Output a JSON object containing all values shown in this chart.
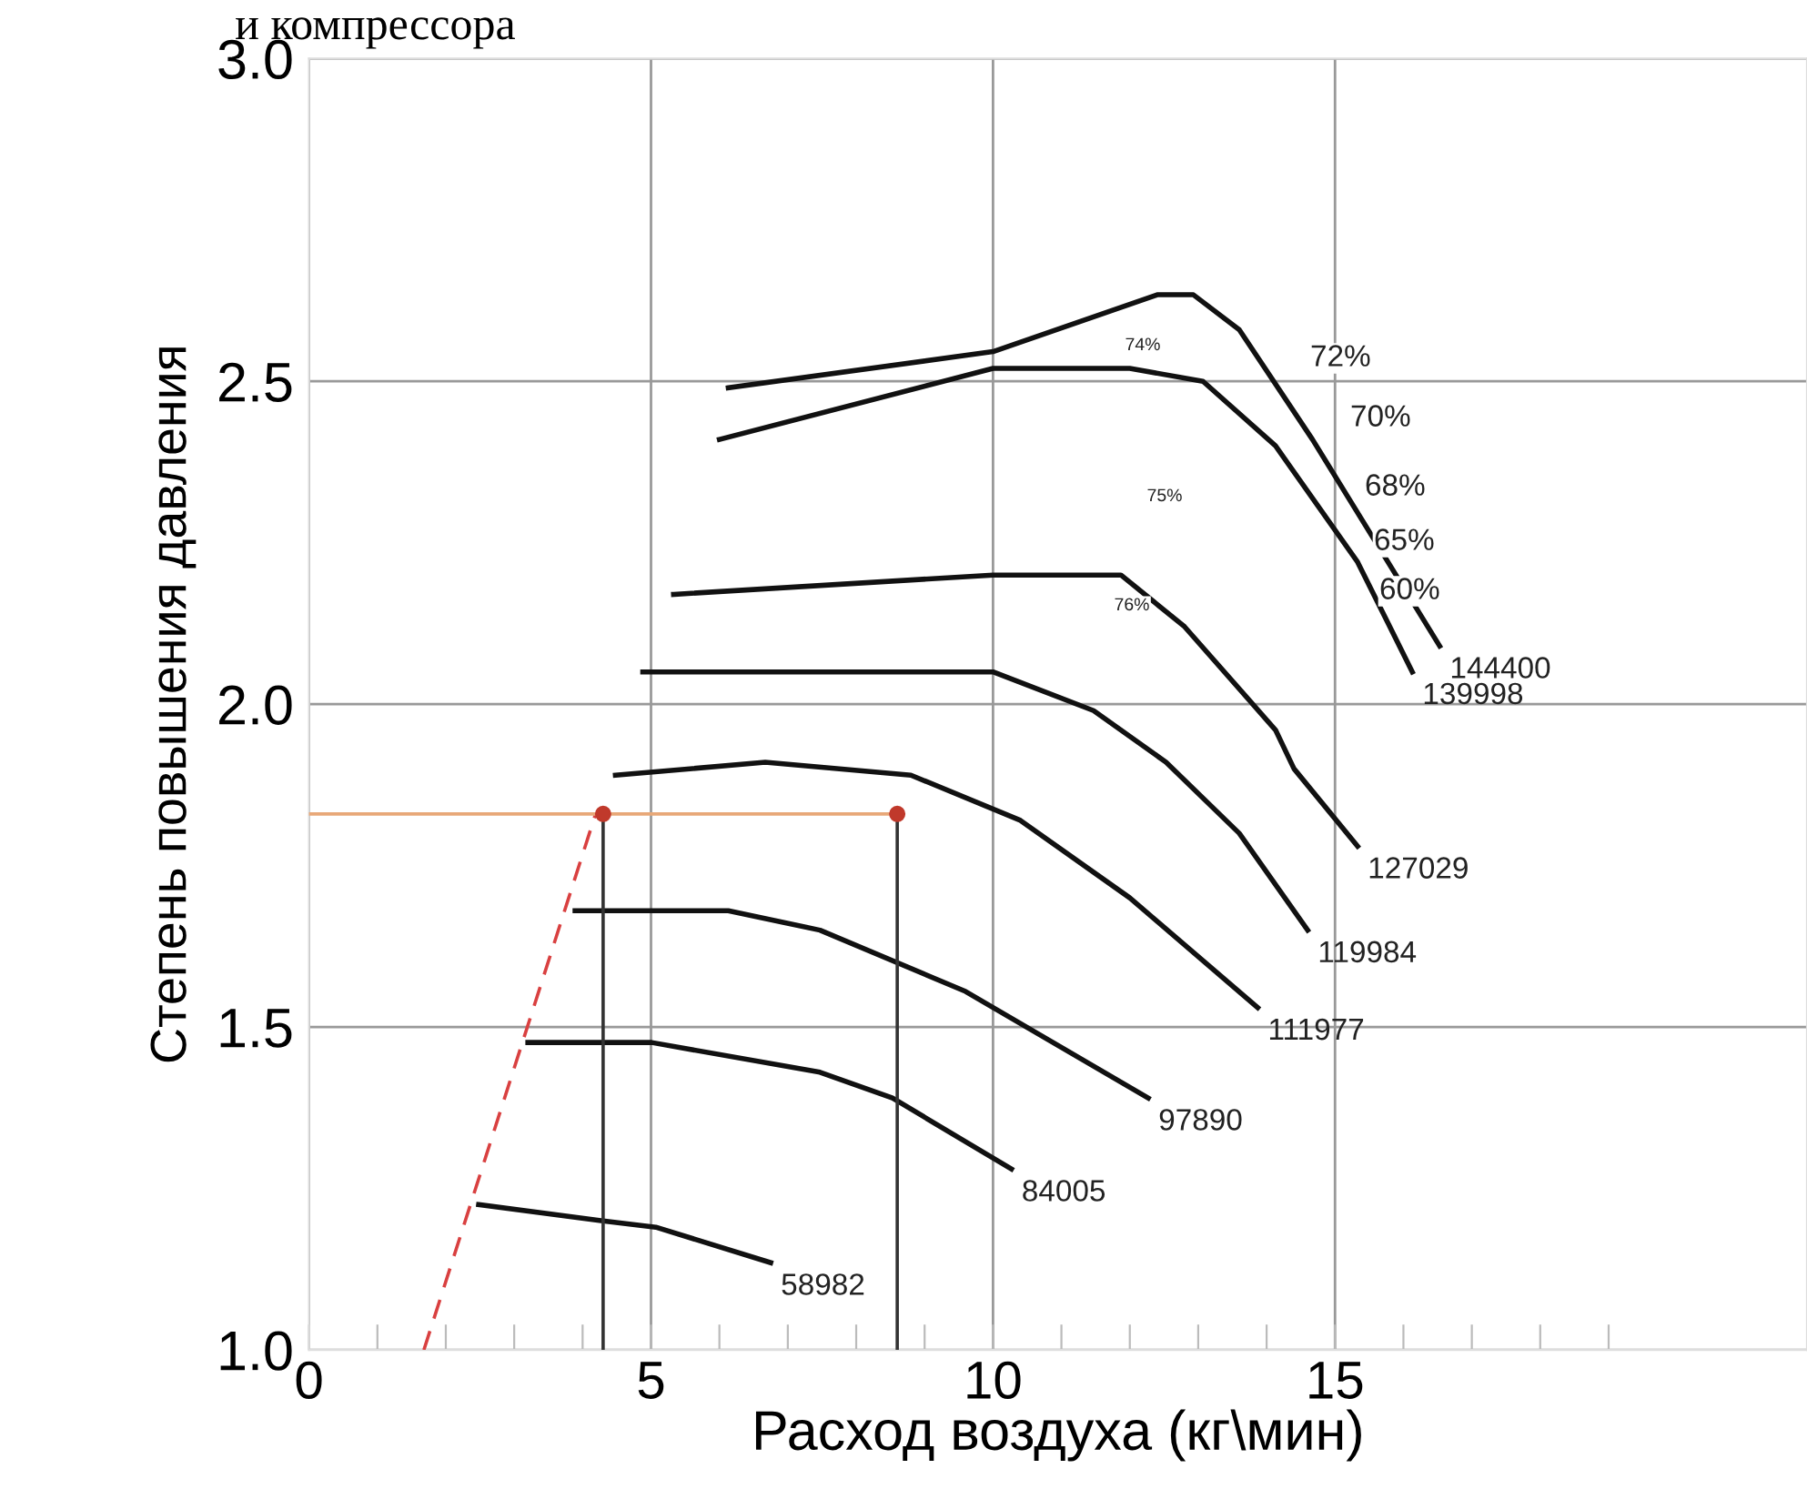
{
  "chart_data": {
    "type": "line",
    "title": "и компрессора",
    "xlabel": "Расход воздуха (кг\\мин)",
    "ylabel": "Степень повышения давления",
    "xlim": [
      0,
      21.9
    ],
    "ylim": [
      1.0,
      3.0
    ],
    "xticks": [
      0,
      {
        "value": 1,
        "label": null
      },
      {
        "value": 2,
        "label": null
      },
      {
        "value": 3,
        "label": null
      },
      {
        "value": 4,
        "label": null
      },
      5,
      {
        "value": 6,
        "label": null
      },
      {
        "value": 7,
        "label": null
      },
      {
        "value": 8,
        "label": null
      },
      {
        "value": 9,
        "label": null
      },
      10,
      {
        "value": 11,
        "label": null
      },
      {
        "value": 12,
        "label": null
      },
      {
        "value": 13,
        "label": null
      },
      {
        "value": 14,
        "label": null
      },
      15,
      {
        "value": 16,
        "label": null
      },
      {
        "value": 17,
        "label": null
      },
      {
        "value": 18,
        "label": null
      },
      {
        "value": 19,
        "label": null
      }
    ],
    "yticks": [
      {
        "value": 1,
        "label": "1.0"
      },
      1.5,
      {
        "value": 2,
        "label": "2.0"
      },
      2.5,
      {
        "value": 3,
        "label": "3.0"
      }
    ],
    "grid": true,
    "series": [
      {
        "name": "144400",
        "color": "#111111",
        "x": [
          6.13,
          10.0,
          12.4,
          12.93,
          13.6,
          14.67,
          16.53
        ],
        "values": [
          2.49,
          2.546,
          2.634,
          2.634,
          2.58,
          2.41,
          2.09
        ]
      },
      {
        "name": "139998",
        "color": "#111111",
        "x": [
          6.0,
          10.0,
          12.0,
          13.07,
          14.13,
          15.33,
          16.13
        ],
        "values": [
          2.41,
          2.52,
          2.52,
          2.5,
          2.4,
          2.22,
          2.05
        ]
      },
      {
        "name": "127029",
        "color": "#111111",
        "x": [
          5.33,
          10.0,
          11.87,
          12.8,
          14.13,
          14.4,
          15.33
        ],
        "values": [
          2.17,
          2.2,
          2.2,
          2.12,
          1.96,
          1.9,
          1.78
        ]
      },
      {
        "name": "119984",
        "color": "#111111",
        "x": [
          4.88,
          10.0,
          11.47,
          12.53,
          13.6,
          14.6
        ],
        "values": [
          2.05,
          2.05,
          1.99,
          1.91,
          1.8,
          1.65
        ]
      },
      {
        "name": "111977",
        "color": "#111111",
        "x": [
          4.48,
          6.67,
          8.8,
          10.4,
          12.0,
          13.87
        ],
        "values": [
          1.89,
          1.91,
          1.89,
          1.82,
          1.7,
          1.53
        ]
      },
      {
        "name": "97890",
        "color": "#111111",
        "x": [
          3.89,
          6.13,
          7.47,
          9.6,
          12.27
        ],
        "values": [
          1.68,
          1.68,
          1.65,
          1.555,
          1.39
        ]
      },
      {
        "name": "84005",
        "color": "#111111",
        "x": [
          3.2,
          5.01,
          7.47,
          8.53,
          10.27
        ],
        "values": [
          1.476,
          1.476,
          1.43,
          1.39,
          1.28
        ]
      },
      {
        "name": "58982",
        "color": "#111111",
        "x": [
          2.48,
          4.27,
          5.07,
          6.75
        ],
        "values": [
          1.225,
          1.2,
          1.19,
          1.135
        ]
      },
      {
        "color": "#d94040",
        "x": [
          1.68,
          4.19
        ],
        "values": [
          1.0,
          1.83
        ],
        "line_style": "dashed"
      },
      {
        "color": "#e8a878",
        "x": [
          0,
          8.6
        ],
        "values": [
          1.83,
          1.83
        ]
      },
      {
        "color": "#333333",
        "x": [
          4.3,
          4.3
        ],
        "values": [
          1.0,
          1.83
        ]
      },
      {
        "color": "#333333",
        "x": [
          8.6,
          8.6
        ],
        "values": [
          1.0,
          1.83
        ]
      },
      {
        "type": "scatter",
        "color": "#c0392b",
        "x": [
          4.3,
          8.6
        ],
        "values": [
          1.83,
          1.83
        ],
        "marker": "circle"
      }
    ],
    "annotations": [
      "72%",
      "70%",
      "68%",
      "65%",
      "60%",
      "74%",
      "75%",
      "76%"
    ]
  }
}
